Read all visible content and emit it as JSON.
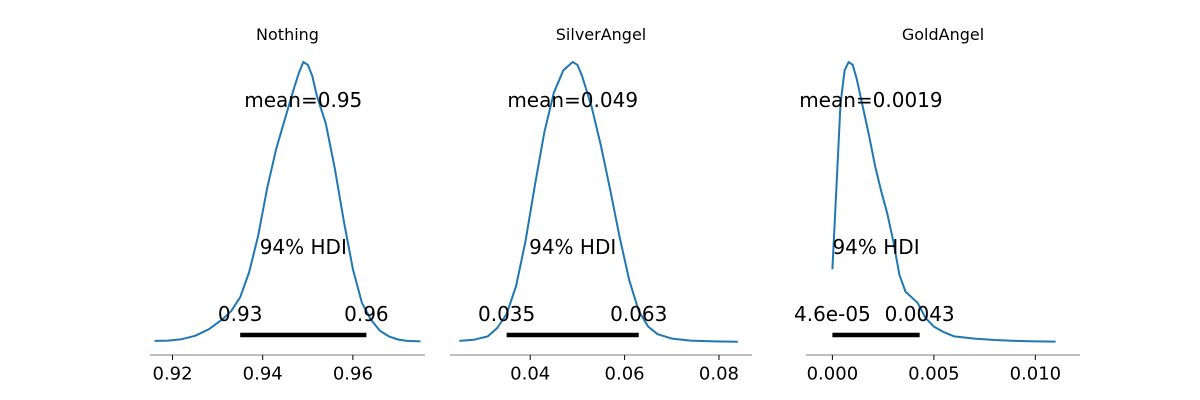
{
  "chart_data": [
    {
      "type": "line",
      "title": "Nothing",
      "xlim": [
        0.915,
        0.976
      ],
      "xticks": [
        0.92,
        0.94,
        0.96
      ],
      "xtick_labels": [
        "0.92",
        "0.94",
        "0.96"
      ],
      "mean_label": "mean=0.95",
      "hdi_label": "94% HDI",
      "hdi": [
        0.935,
        0.963
      ],
      "hdi_low_label": "0.93",
      "hdi_high_label": "0.96",
      "density": {
        "x": [
          0.916,
          0.919,
          0.922,
          0.925,
          0.928,
          0.931,
          0.933,
          0.935,
          0.937,
          0.939,
          0.941,
          0.943,
          0.945,
          0.947,
          0.948,
          0.949,
          0.95,
          0.951,
          0.952,
          0.954,
          0.956,
          0.958,
          0.96,
          0.962,
          0.964,
          0.966,
          0.968,
          0.97,
          0.972,
          0.975
        ],
        "y": [
          0.004,
          0.005,
          0.01,
          0.022,
          0.045,
          0.08,
          0.11,
          0.16,
          0.25,
          0.38,
          0.55,
          0.69,
          0.8,
          0.91,
          0.96,
          1.0,
          0.99,
          0.95,
          0.88,
          0.78,
          0.62,
          0.43,
          0.26,
          0.14,
          0.08,
          0.04,
          0.02,
          0.009,
          0.004,
          0.002
        ]
      },
      "color": "#1f77b4"
    },
    {
      "type": "line",
      "title": "SilverAngel",
      "xlim": [
        0.023,
        0.087
      ],
      "xticks": [
        0.04,
        0.06,
        0.08
      ],
      "xtick_labels": [
        "0.04",
        "0.06",
        "0.08"
      ],
      "mean_label": "mean=0.049",
      "hdi_label": "94% HDI",
      "hdi": [
        0.035,
        0.063
      ],
      "hdi_low_label": "0.035",
      "hdi_high_label": "0.063",
      "density": {
        "x": [
          0.025,
          0.028,
          0.031,
          0.033,
          0.035,
          0.037,
          0.039,
          0.041,
          0.043,
          0.045,
          0.047,
          0.049,
          0.05,
          0.051,
          0.053,
          0.055,
          0.057,
          0.059,
          0.061,
          0.063,
          0.065,
          0.067,
          0.07,
          0.074,
          0.079,
          0.084
        ],
        "y": [
          0.004,
          0.008,
          0.02,
          0.05,
          0.1,
          0.2,
          0.36,
          0.56,
          0.75,
          0.89,
          0.97,
          1.0,
          0.99,
          0.95,
          0.84,
          0.7,
          0.54,
          0.37,
          0.22,
          0.11,
          0.055,
          0.028,
          0.012,
          0.005,
          0.002,
          0.001
        ]
      },
      "color": "#1f77b4"
    },
    {
      "type": "line",
      "title": "GoldAngel",
      "xlim": [
        -0.0013,
        0.0122
      ],
      "xticks": [
        0.0,
        0.005,
        0.01
      ],
      "xtick_labels": [
        "0.000",
        "0.005",
        "0.010"
      ],
      "mean_label": "mean=0.0019",
      "hdi_label": "94% HDI",
      "hdi": [
        0.0,
        0.0043
      ],
      "hdi_low_label": "4.6e-05",
      "hdi_high_label": "0.0043",
      "density": {
        "x": [
          0.0,
          0.0002,
          0.0004,
          0.0006,
          0.0008,
          0.001,
          0.0012,
          0.0015,
          0.0018,
          0.0021,
          0.0024,
          0.0027,
          0.003,
          0.0033,
          0.0036,
          0.0039,
          0.0042,
          0.0046,
          0.005,
          0.0055,
          0.006,
          0.007,
          0.008,
          0.009,
          0.01,
          0.011
        ],
        "y": [
          0.26,
          0.55,
          0.85,
          0.97,
          1.0,
          0.99,
          0.94,
          0.84,
          0.74,
          0.63,
          0.54,
          0.46,
          0.36,
          0.24,
          0.18,
          0.16,
          0.14,
          0.085,
          0.055,
          0.035,
          0.02,
          0.012,
          0.007,
          0.004,
          0.002,
          0.0015
        ]
      },
      "color": "#1f77b4"
    }
  ]
}
